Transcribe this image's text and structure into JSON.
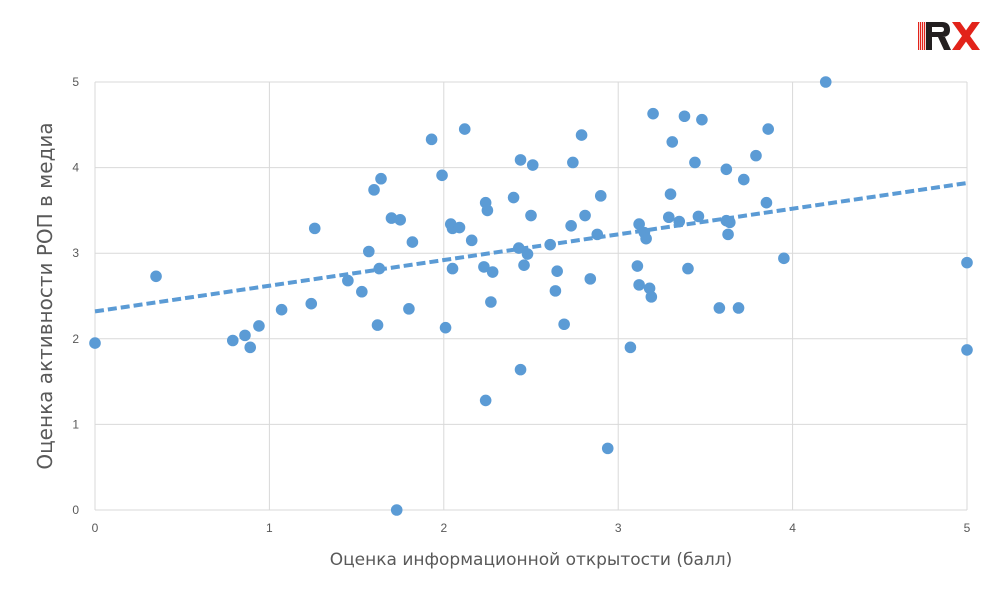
{
  "chart_data": {
    "type": "scatter",
    "title": "",
    "xlabel": "Оценка информационной открытости (балл)",
    "ylabel": "Оценка активности РОП в медиа",
    "xlim": [
      0,
      5
    ],
    "ylim": [
      0,
      5
    ],
    "xticks": [
      "0",
      "1",
      "2",
      "3",
      "4",
      "5"
    ],
    "yticks": [
      "0",
      "1",
      "2",
      "3",
      "4",
      "5"
    ],
    "grid": true,
    "legend": "none",
    "marker_color": "#5b9bd5",
    "trendline": {
      "type": "linear",
      "style": "dashed",
      "color": "#5b9bd5",
      "x": [
        0,
        5
      ],
      "y": [
        2.32,
        3.82
      ]
    },
    "points": [
      [
        0.0,
        1.95
      ],
      [
        0.35,
        2.73
      ],
      [
        0.79,
        1.98
      ],
      [
        0.86,
        2.04
      ],
      [
        0.89,
        1.9
      ],
      [
        0.94,
        2.15
      ],
      [
        1.07,
        2.34
      ],
      [
        1.24,
        2.41
      ],
      [
        1.26,
        3.29
      ],
      [
        1.45,
        2.68
      ],
      [
        1.53,
        2.55
      ],
      [
        1.57,
        3.02
      ],
      [
        1.6,
        3.74
      ],
      [
        1.62,
        2.16
      ],
      [
        1.63,
        2.82
      ],
      [
        1.64,
        3.87
      ],
      [
        1.7,
        3.41
      ],
      [
        1.73,
        0.0
      ],
      [
        1.75,
        3.39
      ],
      [
        1.8,
        2.35
      ],
      [
        1.82,
        3.13
      ],
      [
        1.93,
        4.33
      ],
      [
        1.99,
        3.91
      ],
      [
        2.01,
        2.13
      ],
      [
        2.04,
        3.34
      ],
      [
        2.05,
        2.82
      ],
      [
        2.05,
        3.29
      ],
      [
        2.09,
        3.3
      ],
      [
        2.12,
        4.45
      ],
      [
        2.16,
        3.15
      ],
      [
        2.23,
        2.84
      ],
      [
        2.24,
        3.59
      ],
      [
        2.24,
        1.28
      ],
      [
        2.25,
        3.5
      ],
      [
        2.27,
        2.43
      ],
      [
        2.28,
        2.78
      ],
      [
        2.4,
        3.65
      ],
      [
        2.43,
        3.06
      ],
      [
        2.44,
        4.09
      ],
      [
        2.44,
        1.64
      ],
      [
        2.46,
        2.86
      ],
      [
        2.48,
        2.99
      ],
      [
        2.5,
        3.44
      ],
      [
        2.51,
        4.03
      ],
      [
        2.61,
        3.1
      ],
      [
        2.64,
        2.56
      ],
      [
        2.65,
        2.79
      ],
      [
        2.69,
        2.17
      ],
      [
        2.73,
        3.32
      ],
      [
        2.74,
        4.06
      ],
      [
        2.79,
        4.38
      ],
      [
        2.81,
        3.44
      ],
      [
        2.84,
        2.7
      ],
      [
        2.88,
        3.22
      ],
      [
        2.9,
        3.67
      ],
      [
        2.94,
        0.72
      ],
      [
        3.07,
        1.9
      ],
      [
        3.11,
        2.85
      ],
      [
        3.12,
        3.34
      ],
      [
        3.12,
        2.63
      ],
      [
        3.15,
        3.24
      ],
      [
        3.16,
        3.17
      ],
      [
        3.18,
        2.59
      ],
      [
        3.19,
        2.49
      ],
      [
        3.2,
        4.63
      ],
      [
        3.29,
        3.42
      ],
      [
        3.3,
        3.69
      ],
      [
        3.31,
        4.3
      ],
      [
        3.35,
        3.37
      ],
      [
        3.38,
        4.6
      ],
      [
        3.4,
        2.82
      ],
      [
        3.44,
        4.06
      ],
      [
        3.46,
        3.43
      ],
      [
        3.48,
        4.56
      ],
      [
        3.58,
        2.36
      ],
      [
        3.62,
        3.98
      ],
      [
        3.62,
        3.38
      ],
      [
        3.63,
        3.22
      ],
      [
        3.64,
        3.36
      ],
      [
        3.69,
        2.36
      ],
      [
        3.72,
        3.86
      ],
      [
        3.79,
        4.14
      ],
      [
        3.85,
        3.59
      ],
      [
        3.86,
        4.45
      ],
      [
        3.95,
        2.94
      ],
      [
        4.19,
        5.0
      ],
      [
        5.0,
        2.89
      ],
      [
        5.0,
        1.87
      ]
    ]
  },
  "logo": {
    "text": "RX",
    "icon": "rx-logo-icon",
    "colors": {
      "red": "#e2231a",
      "dark": "#231f20"
    }
  }
}
